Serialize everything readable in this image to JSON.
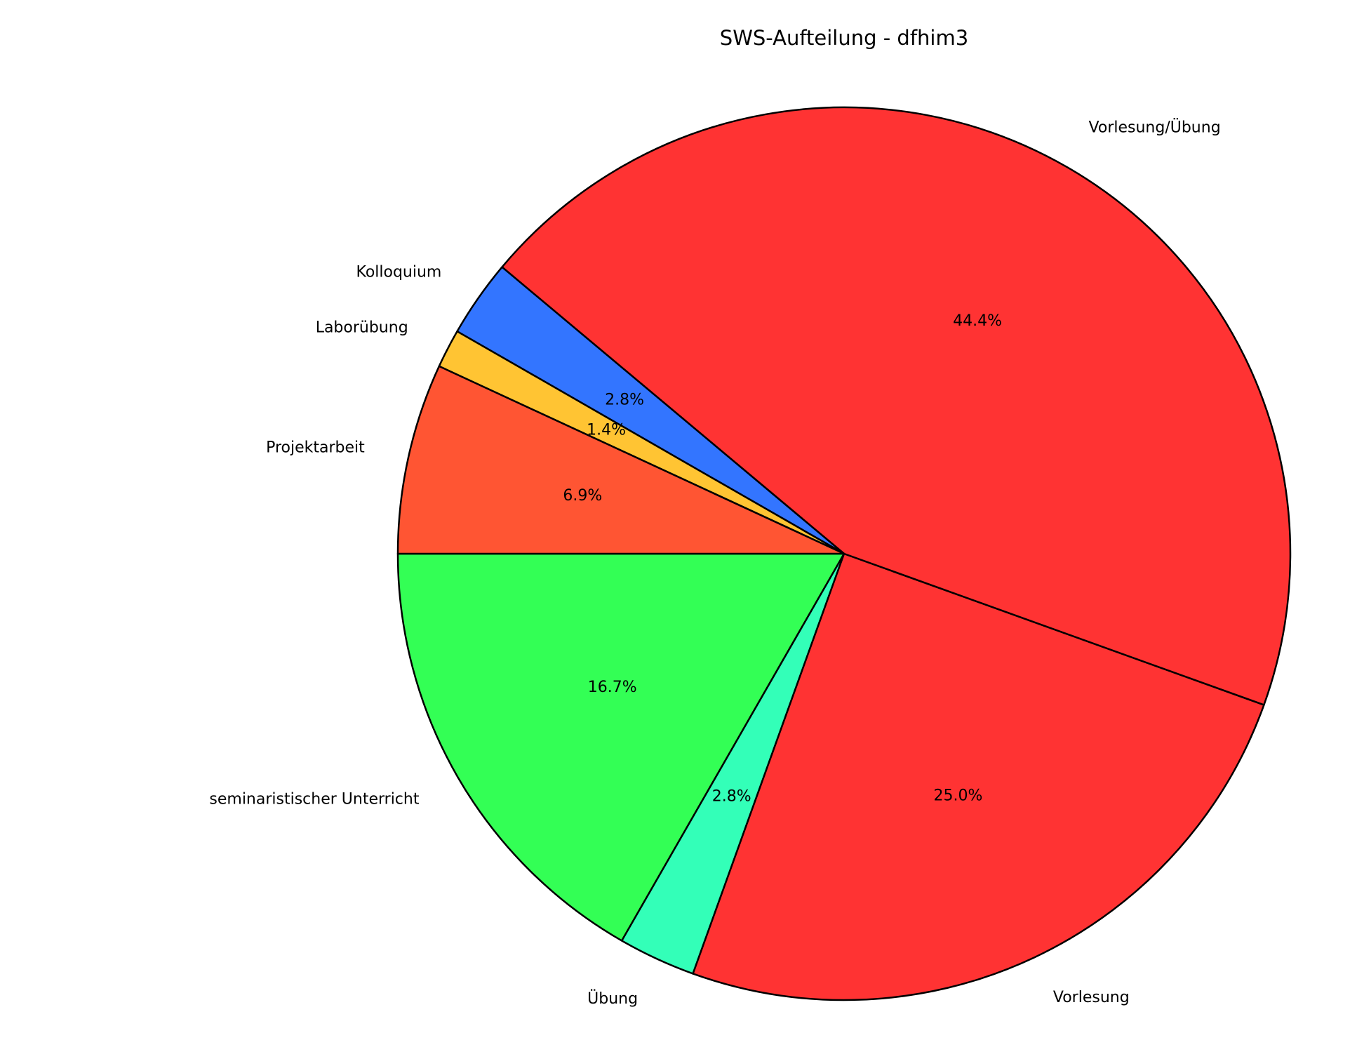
{
  "chart_data": {
    "type": "pie",
    "title": "SWS-Aufteilung - dfhim3",
    "categories": [
      "seminaristischer Unterricht",
      "Übung",
      "Vorlesung",
      "Vorlesung/Übung",
      "Kolloquium",
      "Laborübung",
      "Projektarbeit"
    ],
    "values": [
      16.7,
      2.8,
      25.0,
      44.4,
      2.8,
      1.4,
      6.9
    ],
    "value_labels": [
      "16.7%",
      "2.8%",
      "25.0%",
      "44.4%",
      "2.8%",
      "1.4%",
      "6.9%"
    ],
    "colors": [
      "#33ff55",
      "#33ffb8",
      "#ff3333",
      "#ff3333",
      "#3375ff",
      "#ffc433",
      "#ff5533"
    ],
    "start_angle": 180
  }
}
